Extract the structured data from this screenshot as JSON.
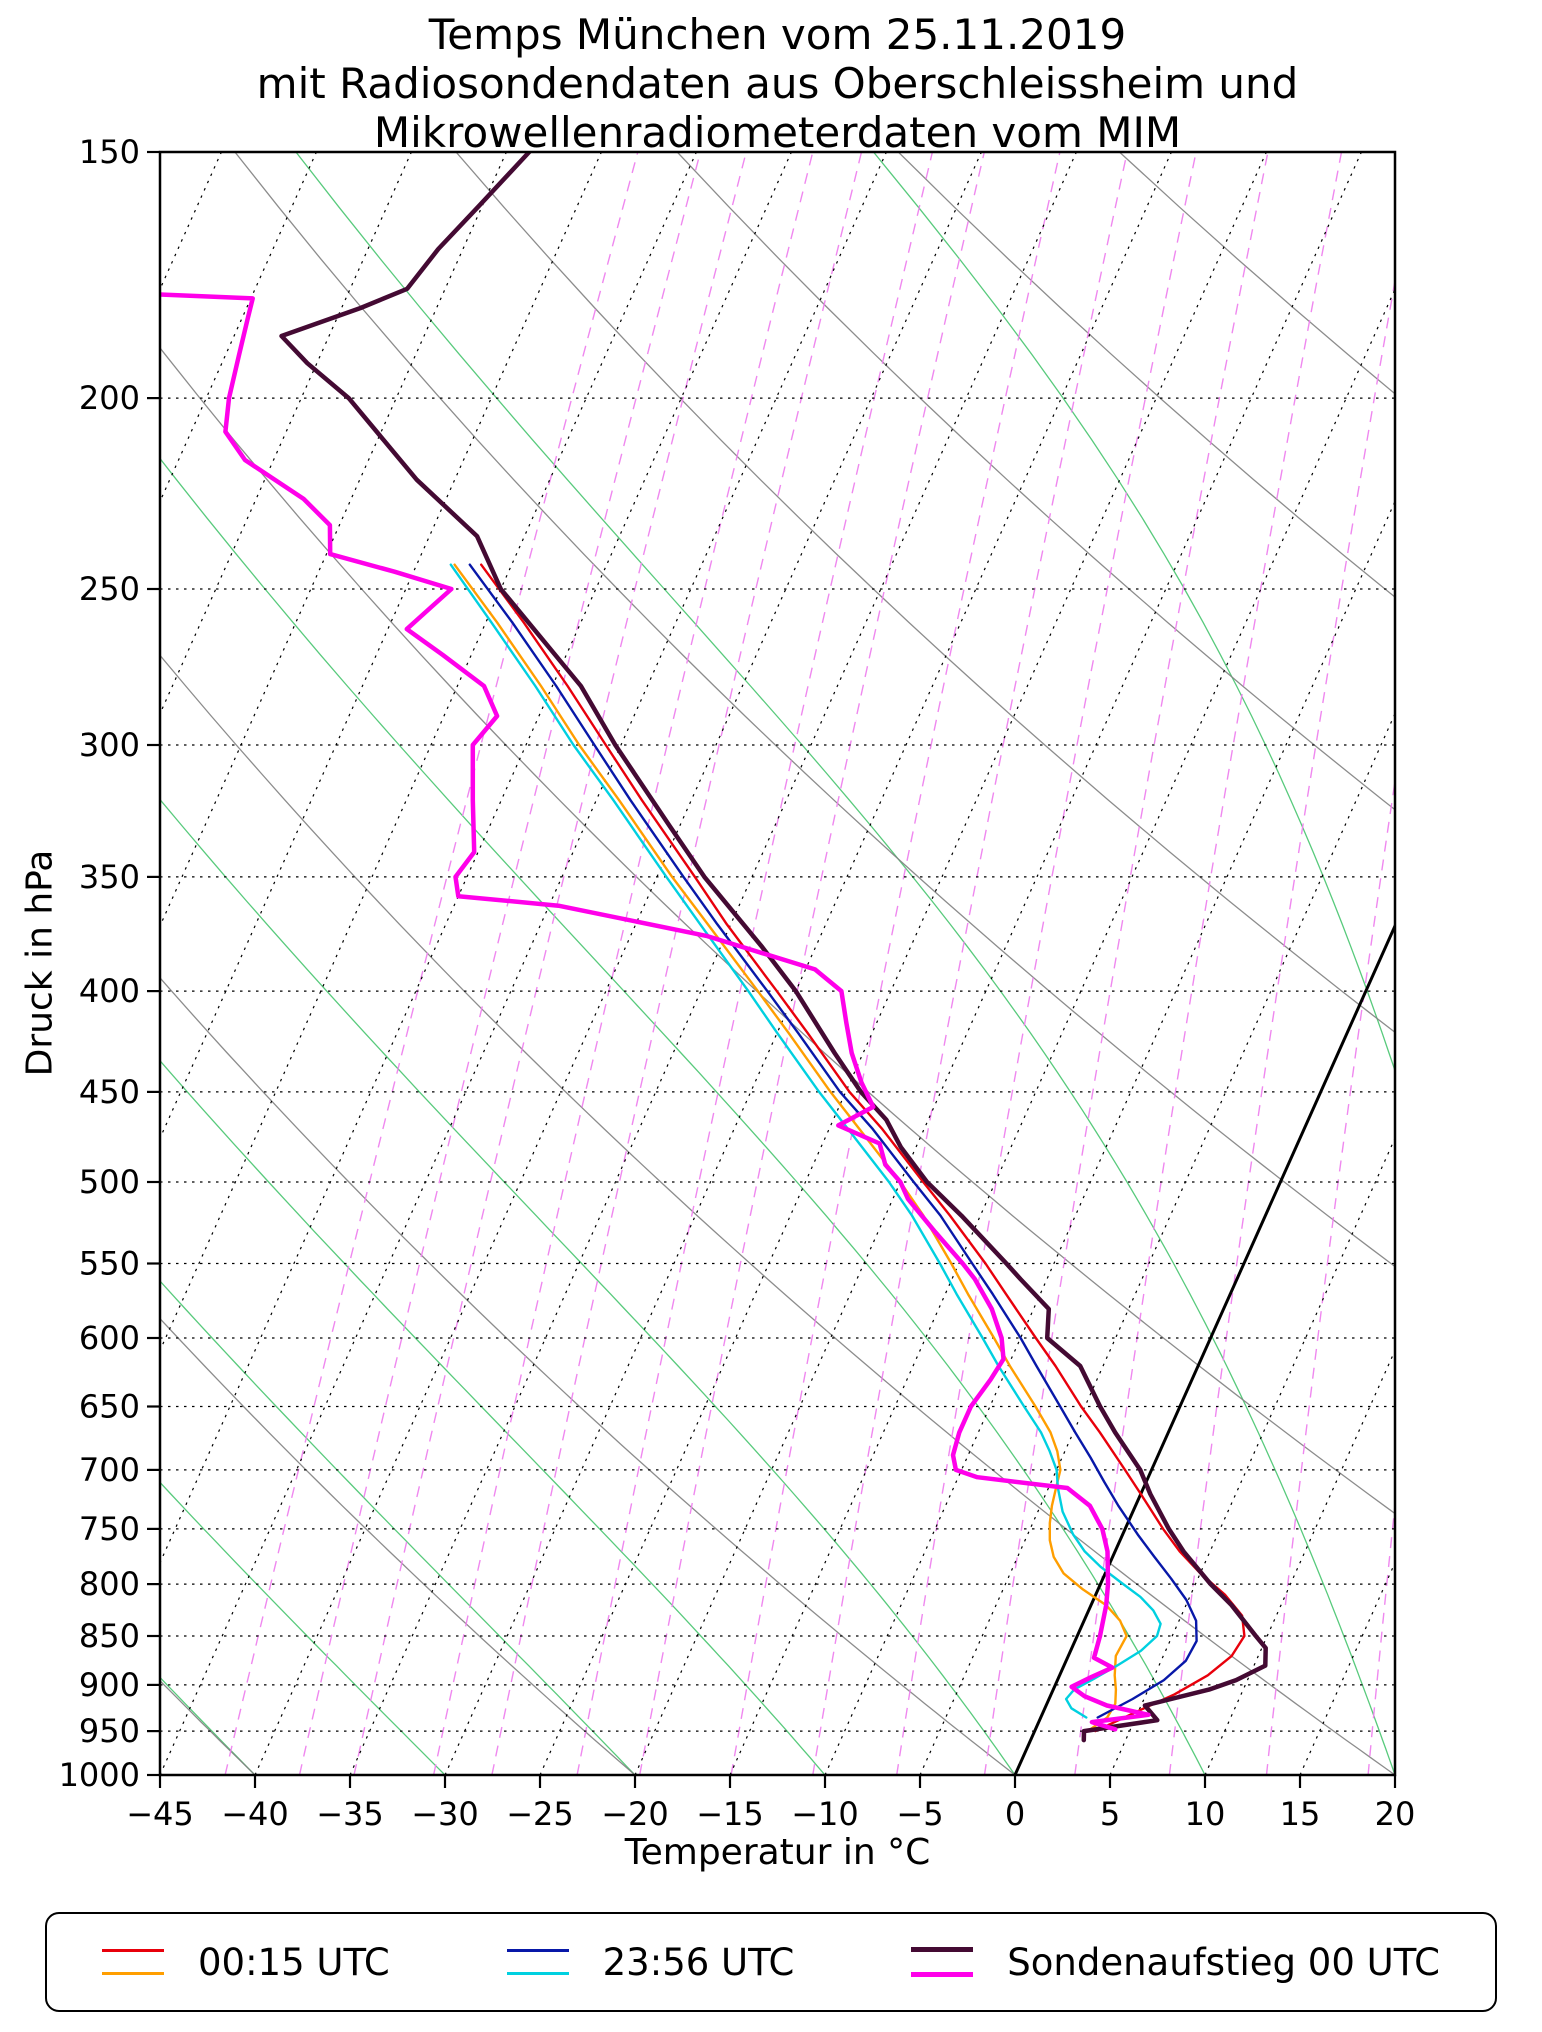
{
  "title": {
    "line1": "Temps München vom 25.11.2019",
    "line2": "mit Radiosondendaten aus Oberschleissheim und",
    "line3": "Mikrowellenradiometerdaten vom MIM"
  },
  "axes": {
    "x_label": "Temperatur in °C",
    "y_label": "Druck in hPa",
    "x_ticks": [
      -45,
      -40,
      -35,
      -30,
      -25,
      -20,
      -15,
      -10,
      -5,
      0,
      5,
      10,
      15,
      20
    ],
    "x_tick_labels": [
      "−45",
      "−40",
      "−35",
      "−30",
      "−25",
      "−20",
      "−15",
      "−10",
      "−5",
      "0",
      "5",
      "10",
      "15",
      "20"
    ],
    "y_ticks": [
      150,
      200,
      250,
      300,
      350,
      400,
      450,
      500,
      550,
      600,
      650,
      700,
      750,
      800,
      850,
      900,
      950,
      1000
    ]
  },
  "legend": {
    "items": [
      {
        "label": "00:15 UTC"
      },
      {
        "label": "23:56 UTC"
      },
      {
        "label": "Sondenaufstieg 00 UTC"
      }
    ]
  },
  "chart_data": {
    "type": "line",
    "diagram": "skew-T log-p",
    "x_range_c": [
      -45,
      20
    ],
    "pressure_range_hpa": [
      150,
      1000
    ],
    "skew_c_per_decade": 46.4,
    "grid": "dotted isobars + dotted skewed isotherms, 0 °C isotherm solid black",
    "background": {
      "isotherm_step_c": 5,
      "isotherm_min_c": -85,
      "isotherm_max_c": 20,
      "isotherm_color": "#000000",
      "zero_isotherm_color": "#000000",
      "isobar_color": "#000000",
      "dry_adiabat_color": "#808080",
      "dry_adiabats_theta_c": [
        -40,
        -20,
        0,
        20,
        40,
        60,
        80,
        100,
        120,
        140
      ],
      "moist_adiabat_color": "#46c46e",
      "moist_adiabats_thetaw_c": [
        -40,
        -30,
        -20,
        -10,
        0,
        10,
        20,
        30,
        40
      ],
      "mixing_ratio_color": "#ee82ee",
      "mixing_ratios_g_kg": [
        0.1,
        0.15,
        0.2,
        0.3,
        0.4,
        0.6,
        0.8,
        1.2,
        1.7,
        2.4,
        3.4,
        4.8,
        6.8,
        9.6,
        13.6,
        19.2
      ]
    },
    "series": [
      {
        "name": "00:15 UTC Temperatur",
        "color": "#e8000b",
        "width": 2.4,
        "points": [
          [
            950,
            3.2
          ],
          [
            930,
            4.8
          ],
          [
            910,
            6.5
          ],
          [
            890,
            7.8
          ],
          [
            870,
            8.6
          ],
          [
            850,
            8.8
          ],
          [
            830,
            8.2
          ],
          [
            810,
            6.8
          ],
          [
            790,
            5.0
          ],
          [
            770,
            3.4
          ],
          [
            750,
            2.0
          ],
          [
            720,
            0.0
          ],
          [
            700,
            -1.4
          ],
          [
            670,
            -3.6
          ],
          [
            650,
            -5.2
          ],
          [
            620,
            -7.5
          ],
          [
            600,
            -9.2
          ],
          [
            570,
            -11.8
          ],
          [
            550,
            -13.6
          ],
          [
            520,
            -16.6
          ],
          [
            500,
            -18.8
          ],
          [
            470,
            -22.2
          ],
          [
            450,
            -24.8
          ],
          [
            420,
            -28.4
          ],
          [
            400,
            -31.0
          ],
          [
            370,
            -35.2
          ],
          [
            350,
            -38.0
          ],
          [
            320,
            -42.6
          ],
          [
            300,
            -45.8
          ],
          [
            280,
            -49.2
          ],
          [
            260,
            -53.0
          ],
          [
            243,
            -56.6
          ]
        ]
      },
      {
        "name": "00:15 UTC Taupunkt",
        "color": "#ff9e00",
        "width": 2.4,
        "points": [
          [
            950,
            2.8
          ],
          [
            935,
            3.5
          ],
          [
            920,
            3.6
          ],
          [
            905,
            3.3
          ],
          [
            890,
            2.9
          ],
          [
            870,
            2.5
          ],
          [
            850,
            2.6
          ],
          [
            835,
            1.9
          ],
          [
            820,
            0.8
          ],
          [
            805,
            -0.8
          ],
          [
            790,
            -2.2
          ],
          [
            775,
            -3.1
          ],
          [
            760,
            -3.7
          ],
          [
            745,
            -4.1
          ],
          [
            730,
            -4.4
          ],
          [
            715,
            -4.6
          ],
          [
            700,
            -4.8
          ],
          [
            685,
            -5.4
          ],
          [
            670,
            -6.2
          ],
          [
            650,
            -7.6
          ],
          [
            620,
            -9.9
          ],
          [
            600,
            -11.4
          ],
          [
            570,
            -13.8
          ],
          [
            550,
            -15.4
          ],
          [
            520,
            -18.0
          ],
          [
            500,
            -20.0
          ],
          [
            470,
            -23.4
          ],
          [
            450,
            -25.8
          ],
          [
            420,
            -29.4
          ],
          [
            400,
            -32.0
          ],
          [
            370,
            -36.2
          ],
          [
            350,
            -39.2
          ],
          [
            320,
            -43.8
          ],
          [
            300,
            -47.2
          ],
          [
            280,
            -50.6
          ],
          [
            260,
            -54.4
          ],
          [
            243,
            -58.0
          ]
        ]
      },
      {
        "name": "23:56 UTC Temperatur",
        "color": "#0818a8",
        "width": 2.4,
        "points": [
          [
            935,
            3.0
          ],
          [
            915,
            4.4
          ],
          [
            895,
            5.6
          ],
          [
            875,
            6.3
          ],
          [
            855,
            6.4
          ],
          [
            835,
            5.9
          ],
          [
            815,
            4.9
          ],
          [
            795,
            3.6
          ],
          [
            775,
            2.2
          ],
          [
            755,
            0.8
          ],
          [
            730,
            -0.9
          ],
          [
            710,
            -2.2
          ],
          [
            690,
            -3.5
          ],
          [
            670,
            -4.9
          ],
          [
            650,
            -6.3
          ],
          [
            620,
            -8.5
          ],
          [
            600,
            -10.0
          ],
          [
            570,
            -12.5
          ],
          [
            550,
            -14.3
          ],
          [
            520,
            -17.1
          ],
          [
            500,
            -19.3
          ],
          [
            470,
            -22.7
          ],
          [
            450,
            -25.3
          ],
          [
            420,
            -28.9
          ],
          [
            400,
            -31.5
          ],
          [
            370,
            -35.7
          ],
          [
            350,
            -38.6
          ],
          [
            320,
            -43.2
          ],
          [
            300,
            -46.4
          ],
          [
            280,
            -49.8
          ],
          [
            260,
            -53.6
          ],
          [
            243,
            -57.2
          ]
        ]
      },
      {
        "name": "23:56 UTC Taupunkt",
        "color": "#00d0e0",
        "width": 2.4,
        "points": [
          [
            935,
            2.4
          ],
          [
            925,
            1.4
          ],
          [
            915,
            0.9
          ],
          [
            905,
            1.1
          ],
          [
            895,
            1.8
          ],
          [
            880,
            2.8
          ],
          [
            865,
            3.7
          ],
          [
            850,
            4.2
          ],
          [
            838,
            4.1
          ],
          [
            825,
            3.4
          ],
          [
            812,
            2.4
          ],
          [
            798,
            1.0
          ],
          [
            784,
            -0.4
          ],
          [
            770,
            -1.6
          ],
          [
            755,
            -2.6
          ],
          [
            735,
            -3.7
          ],
          [
            715,
            -4.5
          ],
          [
            700,
            -5.0
          ],
          [
            685,
            -5.8
          ],
          [
            670,
            -6.7
          ],
          [
            650,
            -8.2
          ],
          [
            620,
            -10.5
          ],
          [
            600,
            -12.0
          ],
          [
            570,
            -14.4
          ],
          [
            550,
            -16.0
          ],
          [
            520,
            -18.6
          ],
          [
            500,
            -20.6
          ],
          [
            470,
            -24.0
          ],
          [
            450,
            -26.4
          ],
          [
            420,
            -30.0
          ],
          [
            400,
            -32.5
          ],
          [
            370,
            -36.6
          ],
          [
            350,
            -39.5
          ],
          [
            320,
            -44.1
          ],
          [
            300,
            -47.5
          ],
          [
            280,
            -50.9
          ],
          [
            260,
            -54.7
          ],
          [
            243,
            -58.2
          ]
        ]
      },
      {
        "name": "Sondenaufstieg 00 UTC Temperatur",
        "color": "#440a33",
        "width": 4.5,
        "points": [
          [
            960,
            2.8
          ],
          [
            950,
            2.6
          ],
          [
            938,
            6.2
          ],
          [
            922,
            5.2
          ],
          [
            905,
            8.2
          ],
          [
            895,
            9.4
          ],
          [
            880,
            10.6
          ],
          [
            862,
            10.2
          ],
          [
            850,
            9.4
          ],
          [
            820,
            7.4
          ],
          [
            800,
            5.8
          ],
          [
            770,
            3.6
          ],
          [
            750,
            2.3
          ],
          [
            720,
            0.5
          ],
          [
            700,
            -0.6
          ],
          [
            670,
            -2.8
          ],
          [
            650,
            -4.2
          ],
          [
            620,
            -6.2
          ],
          [
            600,
            -8.6
          ],
          [
            580,
            -9.2
          ],
          [
            560,
            -11.4
          ],
          [
            550,
            -12.5
          ],
          [
            520,
            -16.0
          ],
          [
            500,
            -18.6
          ],
          [
            480,
            -20.8
          ],
          [
            465,
            -22.2
          ],
          [
            450,
            -24.2
          ],
          [
            430,
            -26.5
          ],
          [
            400,
            -30.0
          ],
          [
            380,
            -32.8
          ],
          [
            350,
            -37.5
          ],
          [
            330,
            -40.5
          ],
          [
            300,
            -45.3
          ],
          [
            280,
            -48.5
          ],
          [
            250,
            -55.0
          ],
          [
            235,
            -57.5
          ],
          [
            220,
            -62.0
          ],
          [
            200,
            -67.5
          ],
          [
            192,
            -70.5
          ],
          [
            186,
            -72.5
          ],
          [
            180,
            -69.0
          ],
          [
            176,
            -67.0
          ],
          [
            168,
            -66.3
          ],
          [
            160,
            -65.2
          ],
          [
            150,
            -63.8
          ]
        ]
      },
      {
        "name": "Sondenaufstieg 00 UTC Taupunkt",
        "color": "#ff00ea",
        "width": 4.5,
        "points": [
          [
            948,
            4.2
          ],
          [
            940,
            2.8
          ],
          [
            932,
            5.6
          ],
          [
            922,
            3.2
          ],
          [
            912,
            1.8
          ],
          [
            902,
            0.9
          ],
          [
            892,
            1.7
          ],
          [
            882,
            2.6
          ],
          [
            872,
            1.4
          ],
          [
            850,
            1.2
          ],
          [
            820,
            0.8
          ],
          [
            800,
            0.4
          ],
          [
            770,
            -0.4
          ],
          [
            750,
            -1.2
          ],
          [
            730,
            -2.4
          ],
          [
            715,
            -4.0
          ],
          [
            706,
            -9.0
          ],
          [
            700,
            -10.3
          ],
          [
            688,
            -10.8
          ],
          [
            670,
            -11.0
          ],
          [
            650,
            -11.0
          ],
          [
            630,
            -10.6
          ],
          [
            615,
            -10.4
          ],
          [
            600,
            -11.0
          ],
          [
            580,
            -12.2
          ],
          [
            560,
            -13.8
          ],
          [
            550,
            -14.8
          ],
          [
            530,
            -17.0
          ],
          [
            510,
            -19.2
          ],
          [
            500,
            -20.0
          ],
          [
            490,
            -21.2
          ],
          [
            478,
            -22.0
          ],
          [
            468,
            -24.6
          ],
          [
            458,
            -23.2
          ],
          [
            445,
            -24.4
          ],
          [
            430,
            -25.6
          ],
          [
            415,
            -26.6
          ],
          [
            400,
            -27.6
          ],
          [
            390,
            -29.5
          ],
          [
            375,
            -36.0
          ],
          [
            362,
            -44.5
          ],
          [
            358,
            -50.0
          ],
          [
            350,
            -50.6
          ],
          [
            340,
            -50.2
          ],
          [
            320,
            -51.5
          ],
          [
            300,
            -52.8
          ],
          [
            290,
            -52.2
          ],
          [
            280,
            -53.6
          ],
          [
            270,
            -56.5
          ],
          [
            262,
            -59.0
          ],
          [
            255,
            -58.2
          ],
          [
            250,
            -57.6
          ],
          [
            245,
            -61.0
          ],
          [
            240,
            -64.8
          ],
          [
            232,
            -65.5
          ],
          [
            225,
            -67.5
          ],
          [
            215,
            -71.5
          ],
          [
            208,
            -73.2
          ],
          [
            200,
            -73.8
          ],
          [
            190,
            -74.3
          ],
          [
            182,
            -74.7
          ],
          [
            178,
            -74.9
          ],
          [
            177,
            -81.0
          ]
        ]
      }
    ]
  }
}
